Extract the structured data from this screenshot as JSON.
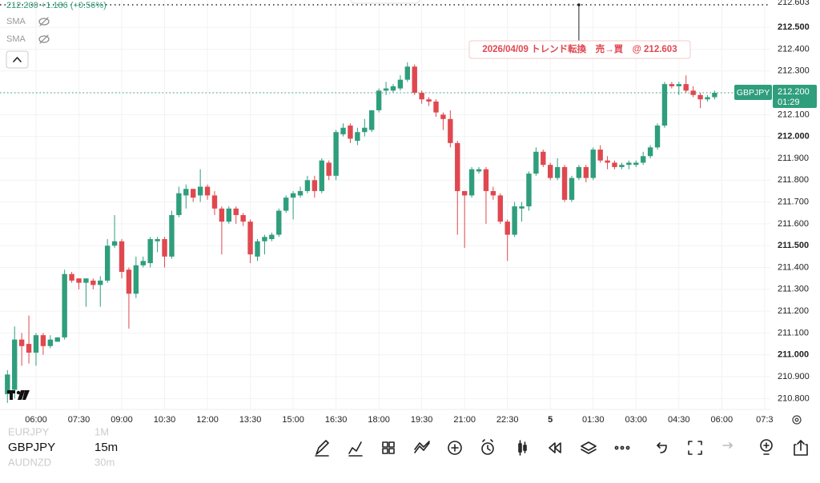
{
  "header": {
    "quote": "212.200 +1.186 (+0.56%)"
  },
  "indicators": [
    "SMA",
    "SMA"
  ],
  "symbols": [
    {
      "name": "EURJPY",
      "interval": "1M"
    },
    {
      "name": "GBPJPY",
      "interval": "15m"
    },
    {
      "name": "AUDNZD",
      "interval": "30m"
    }
  ],
  "chart_data": {
    "type": "candlestick",
    "up_color": "#2f9e7c",
    "down_color": "#e04850",
    "grid": true,
    "categories": [
      null,
      null,
      null,
      null,
      "06:00",
      null,
      null,
      null,
      null,
      null,
      "07:30",
      null,
      null,
      null,
      null,
      null,
      "09:00",
      null,
      null,
      null,
      null,
      null,
      "10:30",
      null,
      null,
      null,
      null,
      null,
      "12:00",
      null,
      null,
      null,
      null,
      null,
      "13:30",
      null,
      null,
      null,
      null,
      null,
      "15:00",
      null,
      null,
      null,
      null,
      null,
      "16:30",
      null,
      null,
      null,
      null,
      null,
      "18:00",
      null,
      null,
      null,
      null,
      null,
      "19:30",
      null,
      null,
      null,
      null,
      null,
      "21:00",
      null,
      null,
      null,
      null,
      null,
      "22:30",
      null,
      null,
      null,
      null,
      null,
      "5",
      null,
      null,
      null,
      null,
      null,
      "01:30",
      null,
      null,
      null,
      null,
      null,
      "03:00",
      null,
      null,
      null,
      null,
      null,
      "04:30",
      null,
      null,
      null,
      null,
      null,
      "06:00",
      null,
      null,
      null,
      null,
      null,
      "07:3",
      null
    ],
    "open": [
      210.82,
      210.84,
      211.07,
      211.05,
      211.01,
      211.09,
      211.04,
      211.06,
      211.08,
      211.37,
      211.35,
      211.33,
      211.34,
      211.32,
      211.34,
      211.5,
      211.52,
      211.39,
      211.28,
      211.41,
      211.42,
      211.52,
      211.53,
      211.45,
      211.64,
      211.73,
      211.76,
      211.73,
      211.77,
      211.73,
      211.67,
      211.61,
      211.67,
      211.64,
      211.61,
      211.45,
      211.52,
      211.53,
      211.55,
      211.66,
      211.72,
      211.73,
      211.75,
      211.8,
      211.75,
      211.88,
      211.82,
      212.01,
      212.05,
      211.98,
      212.02,
      212.03,
      212.12,
      212.21,
      212.21,
      212.22,
      212.26,
      212.32,
      212.2,
      212.17,
      212.16,
      212.1,
      212.08,
      211.97,
      211.75,
      211.73,
      211.84,
      211.85,
      211.75,
      211.73,
      211.61,
      211.55,
      211.67,
      211.68,
      211.83,
      211.93,
      211.87,
      211.81,
      211.86,
      211.71,
      211.81,
      211.86,
      211.81,
      211.94,
      211.89,
      211.88,
      211.86,
      211.87,
      211.87,
      211.88,
      211.91,
      211.95,
      212.05,
      212.24,
      212.23,
      212.24,
      212.21,
      212.19,
      212.17,
      212.18,
      null,
      null,
      null,
      null,
      null,
      null,
      null,
      null
    ],
    "high": [
      210.93,
      211.13,
      211.1,
      211.18,
      211.1,
      211.1,
      211.09,
      211.08,
      211.39,
      211.38,
      211.35,
      211.35,
      211.35,
      211.36,
      211.53,
      211.64,
      211.53,
      211.4,
      211.45,
      211.45,
      211.54,
      211.54,
      211.54,
      211.66,
      211.77,
      211.78,
      211.76,
      211.85,
      211.78,
      211.75,
      211.68,
      211.68,
      211.68,
      211.65,
      211.62,
      211.53,
      211.55,
      211.56,
      211.67,
      211.73,
      211.75,
      211.77,
      211.82,
      211.82,
      211.9,
      211.89,
      212.03,
      212.06,
      212.06,
      212.04,
      212.08,
      212.12,
      212.22,
      212.25,
      212.24,
      212.28,
      212.34,
      212.33,
      212.21,
      212.18,
      212.17,
      212.11,
      212.12,
      211.98,
      211.75,
      211.86,
      211.86,
      211.86,
      211.77,
      211.74,
      211.62,
      211.7,
      211.7,
      211.84,
      211.95,
      211.94,
      211.88,
      211.9,
      211.87,
      211.82,
      211.87,
      211.87,
      211.95,
      211.96,
      211.91,
      211.89,
      211.88,
      211.89,
      211.89,
      211.93,
      211.96,
      212.06,
      212.25,
      212.25,
      212.25,
      212.28,
      212.23,
      212.2,
      212.19,
      212.21,
      null,
      null,
      null,
      null,
      null,
      null,
      null,
      null
    ],
    "low": [
      210.78,
      210.8,
      210.95,
      210.96,
      210.95,
      211.0,
      211.03,
      211.06,
      211.07,
      211.33,
      211.3,
      211.22,
      211.3,
      211.22,
      211.33,
      211.49,
      211.35,
      211.12,
      211.26,
      211.4,
      211.4,
      211.47,
      211.4,
      211.44,
      211.63,
      211.67,
      211.7,
      211.7,
      211.71,
      211.64,
      211.46,
      211.6,
      211.6,
      211.59,
      211.42,
      211.43,
      211.46,
      211.52,
      211.54,
      211.65,
      211.62,
      211.72,
      211.74,
      211.72,
      211.74,
      211.8,
      211.8,
      212.0,
      211.97,
      211.96,
      212.0,
      212.02,
      212.11,
      212.19,
      212.2,
      212.21,
      212.25,
      212.19,
      212.15,
      212.14,
      212.09,
      212.03,
      211.95,
      211.55,
      211.49,
      211.72,
      211.83,
      211.6,
      211.71,
      211.6,
      211.43,
      211.54,
      211.61,
      211.66,
      211.82,
      211.86,
      211.8,
      211.8,
      211.7,
      211.7,
      211.8,
      211.79,
      211.8,
      211.88,
      211.85,
      211.85,
      211.85,
      211.85,
      211.86,
      211.87,
      211.9,
      211.94,
      212.04,
      212.22,
      212.19,
      212.2,
      212.18,
      212.13,
      212.16,
      212.17,
      null,
      null,
      null,
      null,
      null,
      null,
      null,
      null
    ],
    "close": [
      210.91,
      211.07,
      211.04,
      211.01,
      211.09,
      211.04,
      211.07,
      211.08,
      211.37,
      211.34,
      211.33,
      211.35,
      211.32,
      211.34,
      211.5,
      211.52,
      211.38,
      211.28,
      211.41,
      211.43,
      211.53,
      211.53,
      211.45,
      211.64,
      211.74,
      211.76,
      211.72,
      211.77,
      211.73,
      211.67,
      211.61,
      211.67,
      211.64,
      211.61,
      211.46,
      211.52,
      211.54,
      211.55,
      211.66,
      211.72,
      211.74,
      211.75,
      211.8,
      211.75,
      211.89,
      211.82,
      212.02,
      212.04,
      211.99,
      212.02,
      212.04,
      212.12,
      212.21,
      212.22,
      212.23,
      212.26,
      212.32,
      212.2,
      212.17,
      212.16,
      212.11,
      212.08,
      211.97,
      211.75,
      211.73,
      211.85,
      211.85,
      211.75,
      211.73,
      211.61,
      211.55,
      211.68,
      211.68,
      211.83,
      211.93,
      211.87,
      211.81,
      211.86,
      211.71,
      211.81,
      211.86,
      211.81,
      211.94,
      211.89,
      211.88,
      211.86,
      211.87,
      211.88,
      211.88,
      211.91,
      211.95,
      212.05,
      212.24,
      212.23,
      212.24,
      212.21,
      212.19,
      212.17,
      212.18,
      212.2,
      null,
      null,
      null,
      null,
      null,
      null,
      null,
      null
    ],
    "ylim": [
      210.75,
      212.625
    ],
    "yticks": [
      {
        "value": 210.8,
        "label": "210.800"
      },
      {
        "value": 210.9,
        "label": "210.900"
      },
      {
        "value": 211.0,
        "label": "211.000"
      },
      {
        "value": 211.1,
        "label": "211.100"
      },
      {
        "value": 211.2,
        "label": "211.200"
      },
      {
        "value": 211.3,
        "label": "211.300"
      },
      {
        "value": 211.4,
        "label": "211.400"
      },
      {
        "value": 211.5,
        "label": "211.500"
      },
      {
        "value": 211.6,
        "label": "211.600"
      },
      {
        "value": 211.7,
        "label": "211.700"
      },
      {
        "value": 211.8,
        "label": "211.800"
      },
      {
        "value": 211.9,
        "label": "211.900"
      },
      {
        "value": 212.0,
        "label": "212.000"
      },
      {
        "value": 212.1,
        "label": "212.100"
      },
      {
        "value": 212.2,
        "label": "212.200"
      },
      {
        "value": 212.3,
        "label": "212.300"
      },
      {
        "value": 212.4,
        "label": "212.400"
      },
      {
        "value": 212.5,
        "label": "212.500"
      }
    ],
    "last_price": {
      "symbol": "GBPJPY",
      "value": 212.2,
      "label": "212.200",
      "countdown": "01:29"
    },
    "annotation": {
      "text": "2026/04/09 トレンド転換　売→買　@ 212.603",
      "level": {
        "value": 212.603,
        "label": "212.603"
      },
      "category_index": 80
    }
  }
}
